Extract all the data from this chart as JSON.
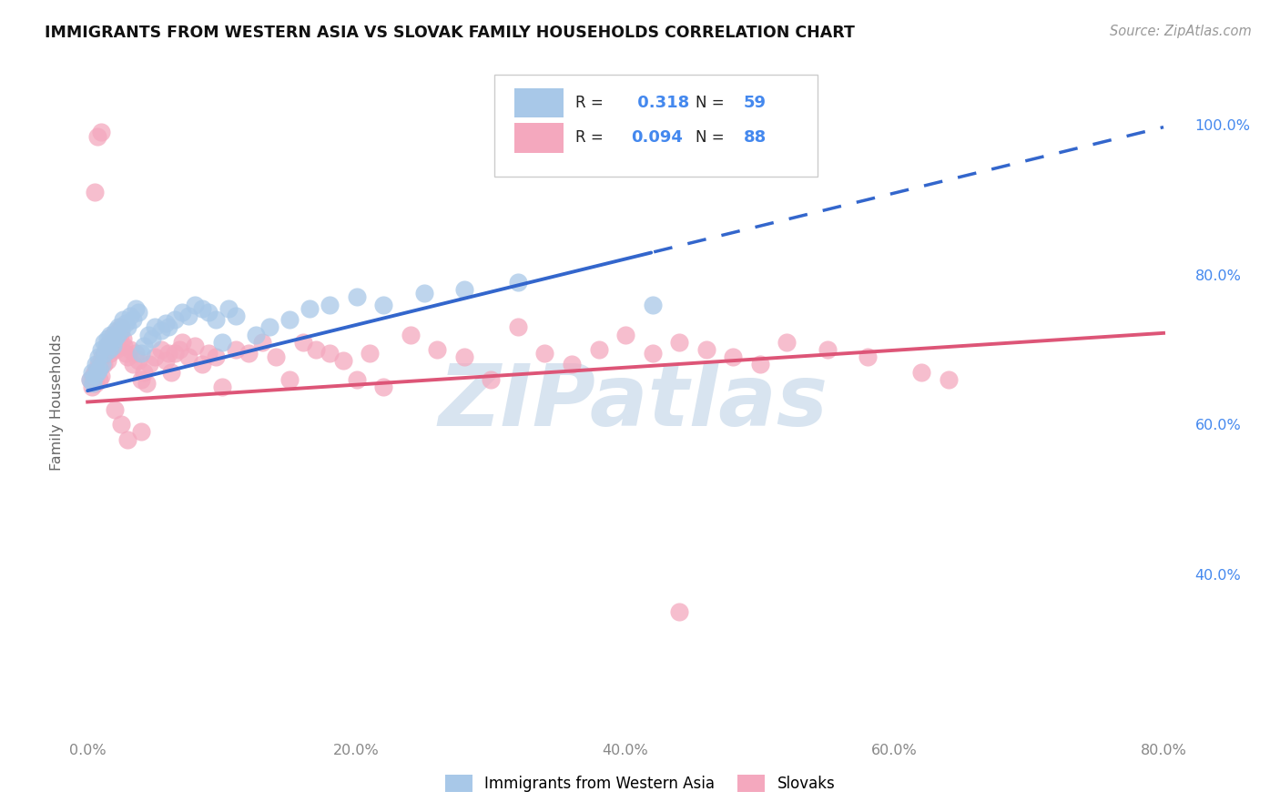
{
  "title": "IMMIGRANTS FROM WESTERN ASIA VS SLOVAK FAMILY HOUSEHOLDS CORRELATION CHART",
  "source": "Source: ZipAtlas.com",
  "ylabel": "Family Households",
  "xlim": [
    -0.008,
    0.82
  ],
  "ylim": [
    0.18,
    1.08
  ],
  "xtick_vals": [
    0.0,
    0.2,
    0.4,
    0.6,
    0.8
  ],
  "xtick_labels": [
    "0.0%",
    "20.0%",
    "40.0%",
    "60.0%",
    "80.0%"
  ],
  "ytick_vals": [
    0.4,
    0.6,
    0.8,
    1.0
  ],
  "ytick_labels": [
    "40.0%",
    "60.0%",
    "80.0%",
    "100.0%"
  ],
  "blue_R": 0.318,
  "blue_N": 59,
  "pink_R": 0.094,
  "pink_N": 88,
  "blue_color": "#a8c8e8",
  "pink_color": "#f4a8be",
  "blue_line_color": "#3366cc",
  "pink_line_color": "#dd5577",
  "watermark": "ZIPatlas",
  "watermark_color": "#d8e4f0",
  "grid_color": "#dddddd",
  "title_color": "#111111",
  "source_color": "#999999",
  "tick_color_y": "#4488ee",
  "tick_color_x": "#888888",
  "legend_val_color": "#4488ee",
  "blue_line_intercept": 0.645,
  "blue_line_slope": 0.44,
  "blue_line_solid_end": 0.42,
  "pink_line_intercept": 0.63,
  "pink_line_slope": 0.115
}
